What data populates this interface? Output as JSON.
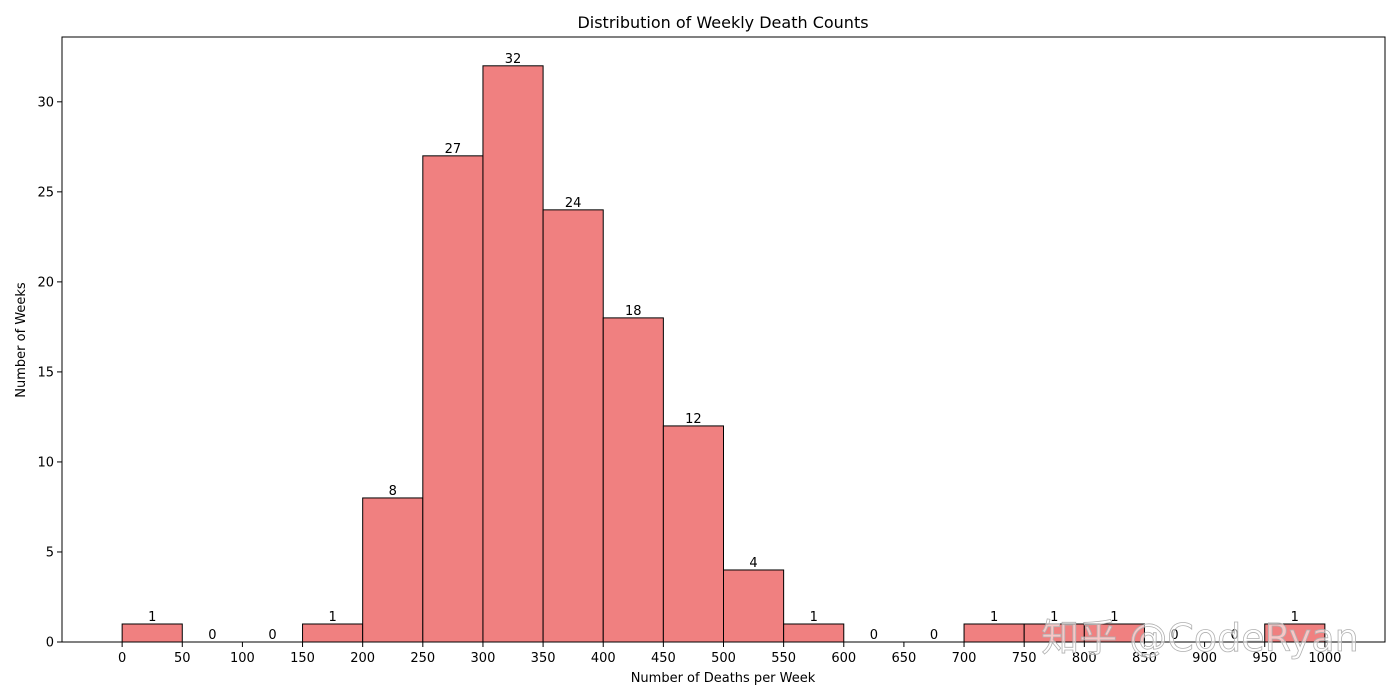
{
  "chart_data": {
    "type": "bar",
    "title": "Distribution of Weekly Death Counts",
    "xlabel": "Number of Deaths per Week",
    "ylabel": "Number of Weeks",
    "bin_edges": [
      0,
      50,
      100,
      150,
      200,
      250,
      300,
      350,
      400,
      450,
      500,
      550,
      600,
      650,
      700,
      750,
      800,
      850,
      900,
      950,
      1000
    ],
    "values": [
      1,
      0,
      0,
      1,
      8,
      27,
      32,
      24,
      18,
      12,
      4,
      1,
      0,
      0,
      1,
      1,
      1,
      0,
      0,
      1
    ],
    "xticks": [
      0,
      50,
      100,
      150,
      200,
      250,
      300,
      350,
      400,
      450,
      500,
      550,
      600,
      650,
      700,
      750,
      800,
      850,
      900,
      950,
      1000
    ],
    "yticks": [
      0,
      5,
      10,
      15,
      20,
      25,
      30
    ],
    "xlim": [
      -50,
      1050
    ],
    "ylim": [
      0,
      33.6
    ],
    "bar_color": "#f08080",
    "edge_color": "#000000",
    "grid": false,
    "legend": "none"
  },
  "watermark": {
    "text": "知乎 @CodeRyan"
  }
}
